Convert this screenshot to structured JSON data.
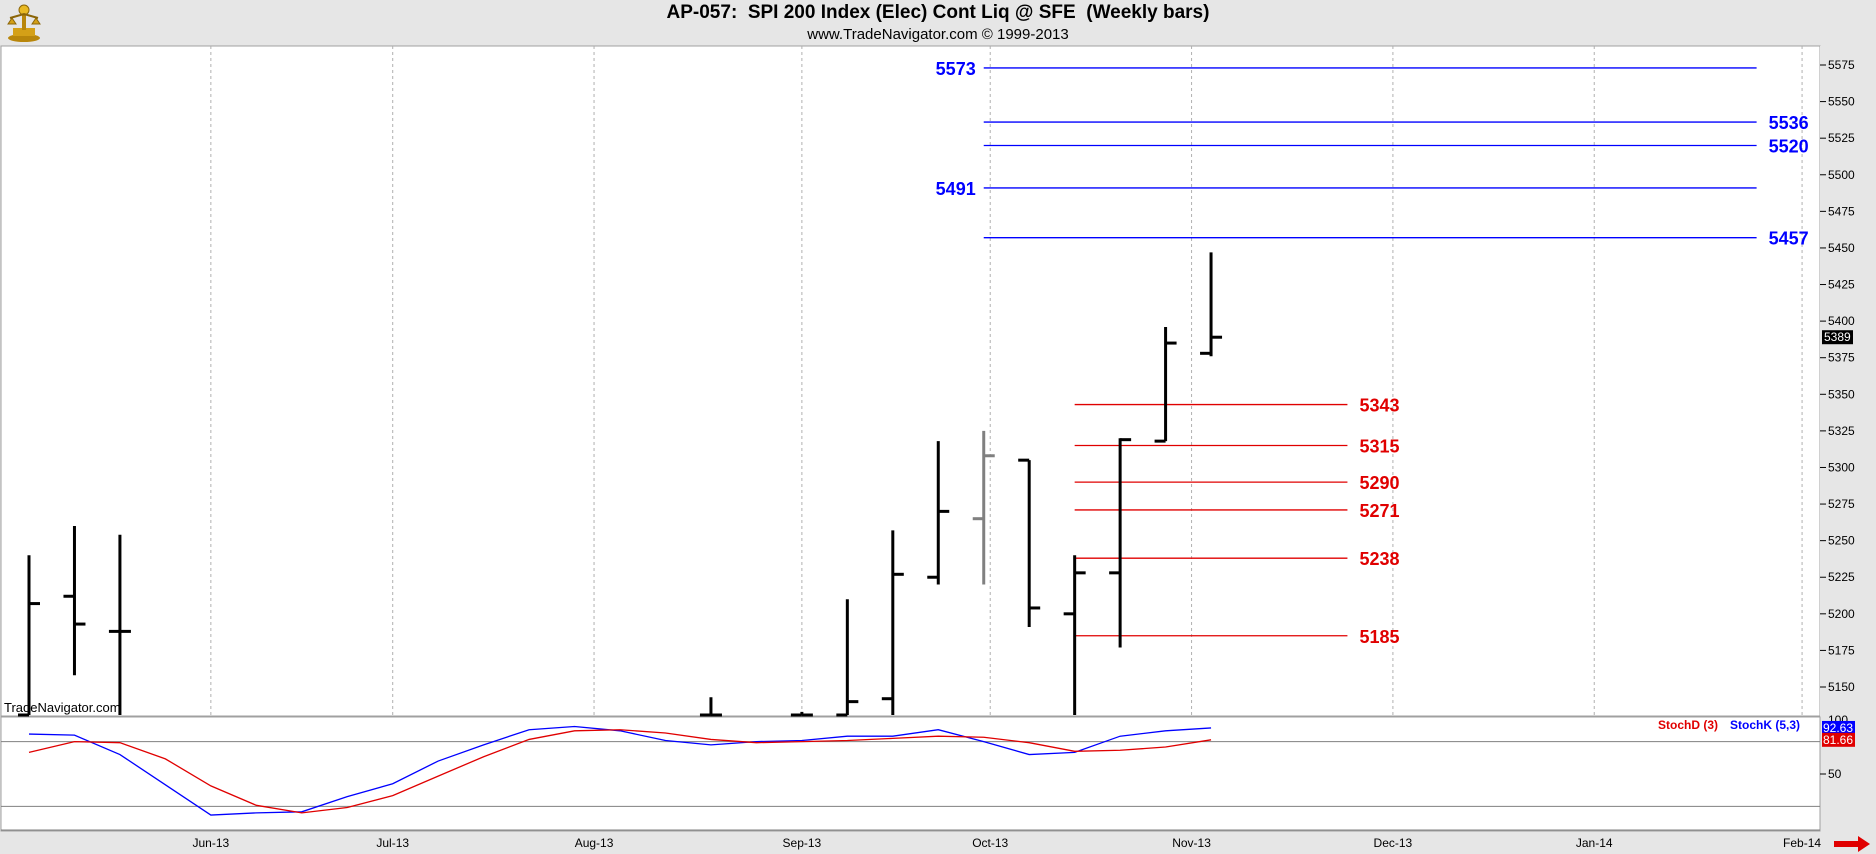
{
  "header": {
    "title": "AP-057:  SPI 200 Index (Elec) Cont Liq @ SFE  (Weekly bars)",
    "subtitle": "www.TradeNavigator.com © 1999-2013",
    "logo_icon": "trade-navigator-logo-icon"
  },
  "watermark": "TradeNavigator.com",
  "nav_icon": "red-arrow-right-icon",
  "colors": {
    "resistance": "#0000ff",
    "support": "#e00000",
    "bars": "#000000",
    "stoch_k": "#0000ff",
    "stoch_d": "#e00000",
    "background": "#ffffff",
    "frame": "#e6e6e6"
  },
  "chart_data": [
    {
      "type": "ohlc",
      "title": "AP-057:  SPI 200 Index (Elec) Cont Liq @ SFE  (Weekly bars)",
      "ylim": [
        5125,
        5590
      ],
      "x_range": [
        "2013-05-06",
        "2014-02-17"
      ],
      "grid": "vertical-dotted",
      "last_price_label": "5389",
      "yticks": [
        5150,
        5175,
        5200,
        5225,
        5250,
        5275,
        5300,
        5325,
        5350,
        5375,
        5400,
        5425,
        5450,
        5475,
        5500,
        5525,
        5550,
        5575
      ],
      "xticks": [
        {
          "label": "Jun-13",
          "date": "2013-06-03"
        },
        {
          "label": "Jul-13",
          "date": "2013-07-01"
        },
        {
          "label": "Aug-13",
          "date": "2013-08-01"
        },
        {
          "label": "Sep-13",
          "date": "2013-09-02"
        },
        {
          "label": "Oct-13",
          "date": "2013-10-01"
        },
        {
          "label": "Nov-13",
          "date": "2013-11-01"
        },
        {
          "label": "Dec-13",
          "date": "2013-12-02"
        },
        {
          "label": "Jan-14",
          "date": "2014-01-02"
        },
        {
          "label": "Feb-14",
          "date": "2014-02-03"
        }
      ],
      "bars": [
        {
          "date": "2013-05-06",
          "open": 5130,
          "high": 5240,
          "low": 5125,
          "close": 5207
        },
        {
          "date": "2013-05-13",
          "open": 5212,
          "high": 5260,
          "low": 5158,
          "close": 5193
        },
        {
          "date": "2013-05-20",
          "open": 5188,
          "high": 5254,
          "low": 5125,
          "close": 5188
        },
        {
          "date": "2013-08-19",
          "open": 5125,
          "high": 5143,
          "low": 5125,
          "close": 5125
        },
        {
          "date": "2013-09-02",
          "open": 5125,
          "high": 5133,
          "low": 5125,
          "close": 5125
        },
        {
          "date": "2013-09-09",
          "open": 5125,
          "high": 5210,
          "low": 5125,
          "close": 5140
        },
        {
          "date": "2013-09-16",
          "open": 5142,
          "high": 5257,
          "low": 5125,
          "close": 5227
        },
        {
          "date": "2013-09-23",
          "open": 5225,
          "high": 5318,
          "low": 5220,
          "close": 5270
        },
        {
          "date": "2013-09-30",
          "open": 5265,
          "high": 5325,
          "low": 5220,
          "close": 5308,
          "color": "#808080"
        },
        {
          "date": "2013-10-07",
          "open": 5305,
          "high": 5305,
          "low": 5191,
          "close": 5204
        },
        {
          "date": "2013-10-14",
          "open": 5200,
          "high": 5240,
          "low": 5125,
          "close": 5228
        },
        {
          "date": "2013-10-21",
          "open": 5228,
          "high": 5320,
          "low": 5177,
          "close": 5319
        },
        {
          "date": "2013-10-28",
          "open": 5318,
          "high": 5396,
          "low": 5318,
          "close": 5385
        },
        {
          "date": "2013-11-04",
          "open": 5378,
          "high": 5447,
          "low": 5376,
          "close": 5389
        }
      ],
      "levels": [
        {
          "value": 5573,
          "label": "5573",
          "color": "#0000ff",
          "from": "2013-09-30",
          "to": "2014-01-27",
          "label_side": "left"
        },
        {
          "value": 5536,
          "label": "5536",
          "color": "#0000ff",
          "from": "2013-09-30",
          "to": "2014-01-27",
          "label_side": "right"
        },
        {
          "value": 5520,
          "label": "5520",
          "color": "#0000ff",
          "from": "2013-09-30",
          "to": "2014-01-27",
          "label_side": "right"
        },
        {
          "value": 5491,
          "label": "5491",
          "color": "#0000ff",
          "from": "2013-09-30",
          "to": "2014-01-27",
          "label_side": "left"
        },
        {
          "value": 5457,
          "label": "5457",
          "color": "#0000ff",
          "from": "2013-09-30",
          "to": "2014-01-27",
          "label_side": "right"
        },
        {
          "value": 5343,
          "label": "5343",
          "color": "#e00000",
          "from": "2013-10-14",
          "to": "2013-11-25",
          "label_side": "right"
        },
        {
          "value": 5315,
          "label": "5315",
          "color": "#e00000",
          "from": "2013-10-14",
          "to": "2013-11-25",
          "label_side": "right"
        },
        {
          "value": 5290,
          "label": "5290",
          "color": "#e00000",
          "from": "2013-10-14",
          "to": "2013-11-25",
          "label_side": "right"
        },
        {
          "value": 5271,
          "label": "5271",
          "color": "#e00000",
          "from": "2013-10-14",
          "to": "2013-11-25",
          "label_side": "right"
        },
        {
          "value": 5238,
          "label": "5238",
          "color": "#e00000",
          "from": "2013-10-14",
          "to": "2013-11-25",
          "label_side": "right"
        },
        {
          "value": 5185,
          "label": "5185",
          "color": "#e00000",
          "from": "2013-10-14",
          "to": "2013-11-25",
          "label_side": "right"
        }
      ]
    },
    {
      "type": "line",
      "ylim": [
        0,
        100
      ],
      "yticks": [
        50
      ],
      "yticks_labels": [
        "50"
      ],
      "top_tick_label": "100",
      "reference_lines": [
        80,
        20
      ],
      "legend": [
        {
          "label": "StochD (3)",
          "color": "#e00000"
        },
        {
          "label": "StochK (5,3)",
          "color": "#0000ff"
        }
      ],
      "legend_placement": "top-right",
      "last_value_labels": [
        {
          "label": "92.63",
          "color": "#0000ff"
        },
        {
          "label": "81.66",
          "color": "#e00000"
        }
      ],
      "series": [
        {
          "name": "StochK (5,3)",
          "color": "#0000ff",
          "x": [
            "2013-05-06",
            "2013-05-13",
            "2013-05-20",
            "2013-05-27",
            "2013-06-03",
            "2013-06-10",
            "2013-06-17",
            "2013-06-24",
            "2013-07-01",
            "2013-07-08",
            "2013-07-15",
            "2013-07-22",
            "2013-07-29",
            "2013-08-05",
            "2013-08-12",
            "2013-08-19",
            "2013-08-26",
            "2013-09-02",
            "2013-09-09",
            "2013-09-16",
            "2013-09-23",
            "2013-09-30",
            "2013-10-07",
            "2013-10-14",
            "2013-10-21",
            "2013-10-28",
            "2013-11-04"
          ],
          "values": [
            87,
            86,
            68,
            40,
            12,
            14,
            15,
            29,
            41,
            62,
            77,
            91,
            94,
            90,
            81,
            77,
            80,
            81,
            85,
            85,
            91,
            80,
            68,
            70,
            85,
            90,
            92.63
          ]
        },
        {
          "name": "StochD (3)",
          "color": "#e00000",
          "x": [
            "2013-05-06",
            "2013-05-13",
            "2013-05-20",
            "2013-05-27",
            "2013-06-03",
            "2013-06-10",
            "2013-06-17",
            "2013-06-24",
            "2013-07-01",
            "2013-07-08",
            "2013-07-15",
            "2013-07-22",
            "2013-07-29",
            "2013-08-05",
            "2013-08-12",
            "2013-08-19",
            "2013-08-26",
            "2013-09-02",
            "2013-09-09",
            "2013-09-16",
            "2013-09-23",
            "2013-09-30",
            "2013-10-07",
            "2013-10-14",
            "2013-10-21",
            "2013-10-28",
            "2013-11-04"
          ],
          "values": [
            70,
            80,
            79,
            64,
            39,
            21,
            14,
            19,
            30,
            48,
            66,
            82,
            90,
            91,
            88,
            82,
            79,
            80,
            81,
            83,
            85,
            84,
            79,
            71,
            72,
            75,
            81.66
          ]
        }
      ]
    }
  ]
}
